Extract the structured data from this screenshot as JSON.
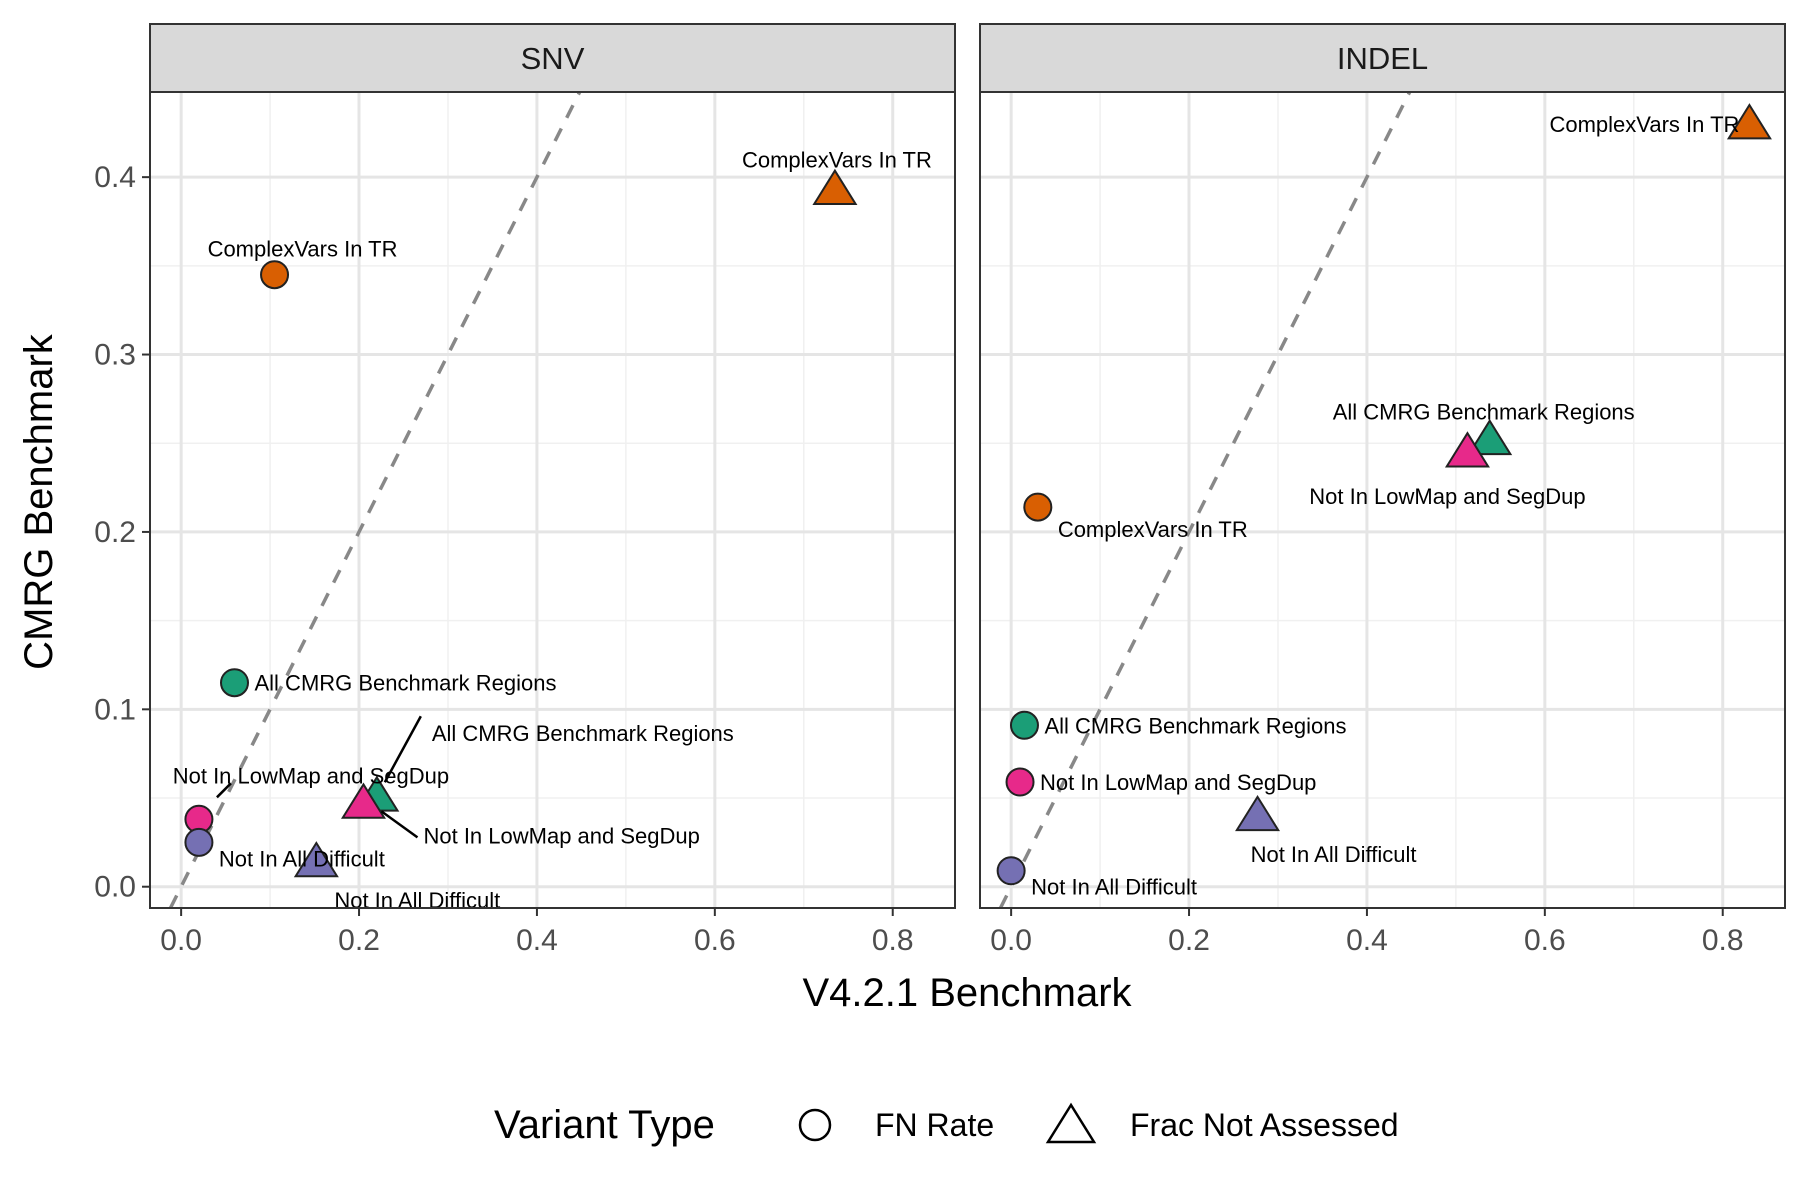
{
  "chart_data": {
    "type": "scatter",
    "xlabel": "V4.2.1 Benchmark",
    "ylabel": "CMRG Benchmark",
    "xlim": [
      -0.035,
      0.87
    ],
    "ylim": [
      -0.012,
      0.448
    ],
    "x_ticks": [
      0.0,
      0.2,
      0.4,
      0.6,
      0.8
    ],
    "x_tick_labels": [
      "0.0",
      "0.2",
      "0.4",
      "0.6",
      "0.8"
    ],
    "y_ticks": [
      0.0,
      0.1,
      0.2,
      0.3,
      0.4
    ],
    "y_tick_labels": [
      "0.0",
      "0.1",
      "0.2",
      "0.3",
      "0.4"
    ],
    "grid": true,
    "reference_line": {
      "style": "dashed",
      "color": "#888888",
      "slope": 1,
      "intercept": 0
    },
    "colors": {
      "ComplexVars In TR": "#d95f02",
      "All CMRG Benchmark Regions": "#1b9e77",
      "Not In LowMap and SegDup": "#e7298a",
      "Not In All Difficult": "#7570b3"
    },
    "legend": {
      "title": "Variant Type",
      "position": "bottom",
      "items": [
        {
          "label": "FN Rate",
          "shape": "circle"
        },
        {
          "label": "Frac Not Assessed",
          "shape": "triangle"
        }
      ]
    },
    "panels": [
      {
        "title": "SNV",
        "points": [
          {
            "x": 0.105,
            "y": 0.345,
            "shape": "circle",
            "group": "ComplexVars In TR",
            "label": "ComplexVars In TR"
          },
          {
            "x": 0.06,
            "y": 0.115,
            "shape": "circle",
            "group": "All CMRG Benchmark Regions",
            "label": "All CMRG Benchmark Regions"
          },
          {
            "x": 0.02,
            "y": 0.038,
            "shape": "circle",
            "group": "Not In LowMap and SegDup",
            "label": "Not In LowMap and SegDup"
          },
          {
            "x": 0.02,
            "y": 0.025,
            "shape": "circle",
            "group": "Not In All Difficult",
            "label": "Not In All Difficult"
          },
          {
            "x": 0.735,
            "y": 0.393,
            "shape": "triangle",
            "group": "ComplexVars In TR",
            "label": "ComplexVars In TR"
          },
          {
            "x": 0.22,
            "y": 0.051,
            "shape": "triangle",
            "group": "All CMRG Benchmark Regions",
            "label": "All CMRG Benchmark Regions"
          },
          {
            "x": 0.205,
            "y": 0.047,
            "shape": "triangle",
            "group": "Not In LowMap and SegDup",
            "label": "Not In LowMap and SegDup"
          },
          {
            "x": 0.152,
            "y": 0.014,
            "shape": "triangle",
            "group": "Not In All Difficult",
            "label": "Not In All Difficult"
          }
        ]
      },
      {
        "title": "INDEL",
        "points": [
          {
            "x": 0.03,
            "y": 0.214,
            "shape": "circle",
            "group": "ComplexVars In TR",
            "label": "ComplexVars In TR"
          },
          {
            "x": 0.015,
            "y": 0.091,
            "shape": "circle",
            "group": "All CMRG Benchmark Regions",
            "label": "All CMRG Benchmark Regions"
          },
          {
            "x": 0.01,
            "y": 0.059,
            "shape": "circle",
            "group": "Not In LowMap and SegDup",
            "label": "Not In LowMap and SegDup"
          },
          {
            "x": 0.0,
            "y": 0.009,
            "shape": "circle",
            "group": "Not In All Difficult",
            "label": "Not In All Difficult"
          },
          {
            "x": 0.83,
            "y": 0.43,
            "shape": "triangle",
            "group": "ComplexVars In TR",
            "label": "ComplexVars In TR"
          },
          {
            "x": 0.538,
            "y": 0.252,
            "shape": "triangle",
            "group": "All CMRG Benchmark Regions",
            "label": "All CMRG Benchmark Regions"
          },
          {
            "x": 0.513,
            "y": 0.245,
            "shape": "triangle",
            "group": "Not In LowMap and SegDup",
            "label": "Not In LowMap and SegDup"
          },
          {
            "x": 0.277,
            "y": 0.04,
            "shape": "triangle",
            "group": "Not In All Difficult",
            "label": "Not In All Difficult"
          }
        ]
      }
    ]
  }
}
